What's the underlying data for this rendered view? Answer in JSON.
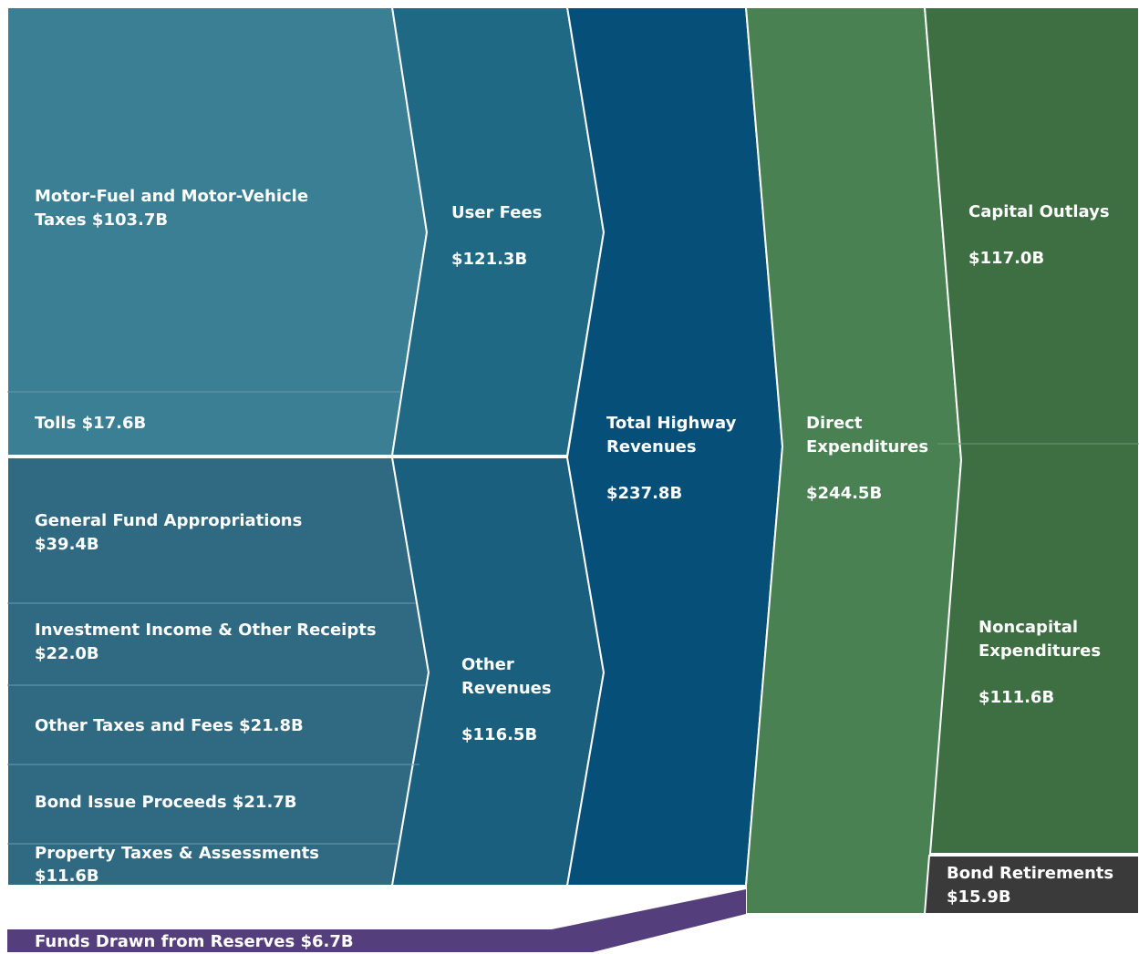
{
  "nodes": [
    {
      "label": "Motor-Fuel and Motor-Vehicle Taxes",
      "amount": "$103.7B"
    },
    {
      "label": "Tolls",
      "amount": "$17.6B"
    },
    {
      "label": "General Fund Appropriations",
      "amount": "$39.4B"
    },
    {
      "label": "Investment Income & Other Receipts",
      "amount": "$22.0B"
    },
    {
      "label": "Other Taxes and Fees",
      "amount": "$21.8B"
    },
    {
      "label": "Bond Issue Proceeds",
      "amount": "$21.7B"
    },
    {
      "label": "Property Taxes & Assessments",
      "amount": "$11.6B"
    },
    {
      "label": "User Fees",
      "amount": "$121.3B"
    },
    {
      "label": "Other Revenues",
      "amount": "$116.5B"
    },
    {
      "label": "Total Highway Revenues",
      "amount": "$237.8B"
    },
    {
      "label": "Direct Expenditures",
      "amount": "$244.5B"
    },
    {
      "label": "Capital Outlays",
      "amount": "$117.0B"
    },
    {
      "label": "Noncapital Expenditures",
      "amount": "$111.6B"
    },
    {
      "label": "Bond Retirements",
      "amount": "$15.9B"
    },
    {
      "label": "Funds Drawn from Reserves",
      "amount": "$6.7B"
    }
  ]
}
